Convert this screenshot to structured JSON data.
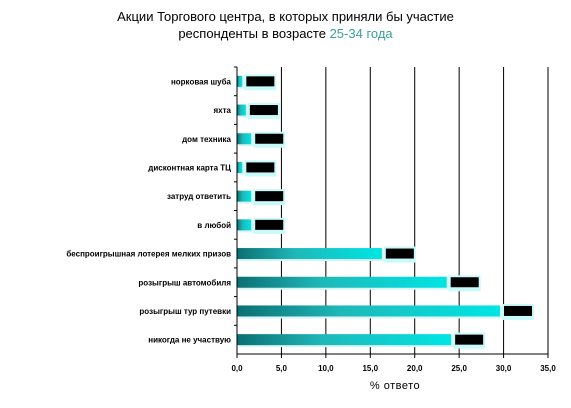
{
  "title": {
    "line1": "Акции Торгового центра, в которых приняли бы участие",
    "line2_prefix": "респонденты в возрасте ",
    "line2_highlight": "25-34 года"
  },
  "chart_data": {
    "type": "bar",
    "orientation": "horizontal",
    "categories": [
      "норковая шуба",
      "яхта",
      "дом техника",
      "дисконтная карта ТЦ",
      "затруд ответить",
      "в любой",
      "беспроигрышная лотерея мелких призов",
      "розыгрыш автомобиля",
      "розыгрыш тур путевки",
      "никогда не участвую"
    ],
    "values": [
      0.6,
      1.0,
      1.6,
      0.6,
      1.6,
      1.6,
      16.3,
      23.6,
      29.6,
      24.1
    ],
    "xlabel": "% ответо",
    "ylabel": "",
    "xlim": [
      0,
      35
    ],
    "xticks": [
      "0,0",
      "5,0",
      "10,0",
      "15,0",
      "20,0",
      "25,0",
      "30,0",
      "35,0"
    ],
    "grid": "vertical",
    "colors": {
      "bar": "#00e5e5",
      "bar_dark": "#0b6f73",
      "label_box": "#000000",
      "grid": "#000000"
    }
  }
}
